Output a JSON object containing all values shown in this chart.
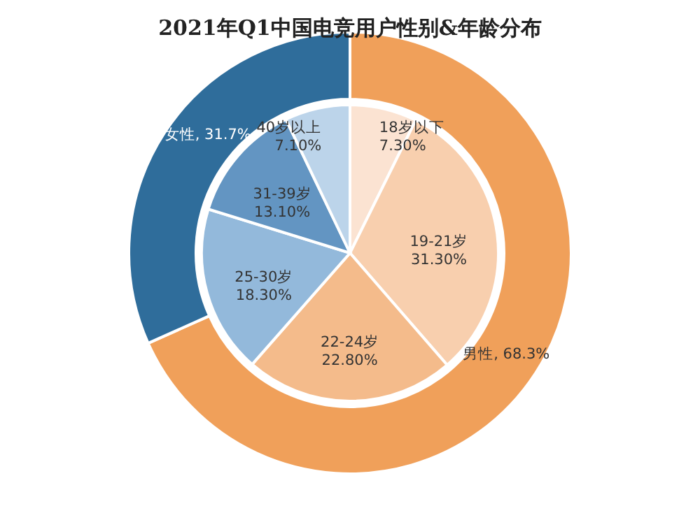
{
  "chart_data": [
    {
      "type": "donut",
      "title": "2021年Q1中国电竞用户性别&年龄分布",
      "categories": [
        "男性",
        "女性"
      ],
      "values": [
        68.3,
        31.7
      ],
      "colors": [
        "#f0a05a",
        "#2f6d9b"
      ],
      "value_labels": [
        "68.3%",
        "31.7%"
      ]
    },
    {
      "type": "pie",
      "categories": [
        "18岁以下",
        "19-21岁",
        "22-24岁",
        "25-30岁",
        "31-39岁",
        "40岁以上"
      ],
      "values": [
        7.3,
        31.3,
        22.8,
        18.3,
        13.1,
        7.1
      ],
      "colors": [
        "#fbe3d2",
        "#f8cfae",
        "#f4bb8b",
        "#93b9db",
        "#6395c2",
        "#bcd4ea"
      ],
      "value_labels": [
        "7.30%",
        "31.30%",
        "22.80%",
        "18.30%",
        "13.10%",
        "7.10%"
      ]
    }
  ]
}
